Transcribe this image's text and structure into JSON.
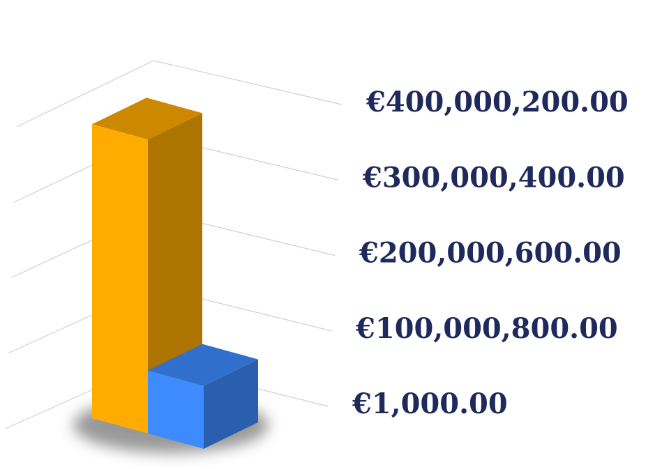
{
  "chart_data": {
    "type": "bar3d",
    "categories": [
      null,
      null
    ],
    "values": [
      350000000,
      75000000
    ],
    "colors": [
      "#ffab00",
      "#3d8bff"
    ],
    "ylim": [
      1000,
      400000200
    ],
    "yticks": [
      {
        "value": 1000,
        "label": "€1,000.00"
      },
      {
        "value": 100000800,
        "label": "€100,000,800.00"
      },
      {
        "value": 200000600,
        "label": "€200,000,600.00"
      },
      {
        "value": 300000400,
        "label": "€300,000,400.00"
      },
      {
        "value": 400000200,
        "label": "€400,000,200.00"
      }
    ],
    "grid": true
  }
}
